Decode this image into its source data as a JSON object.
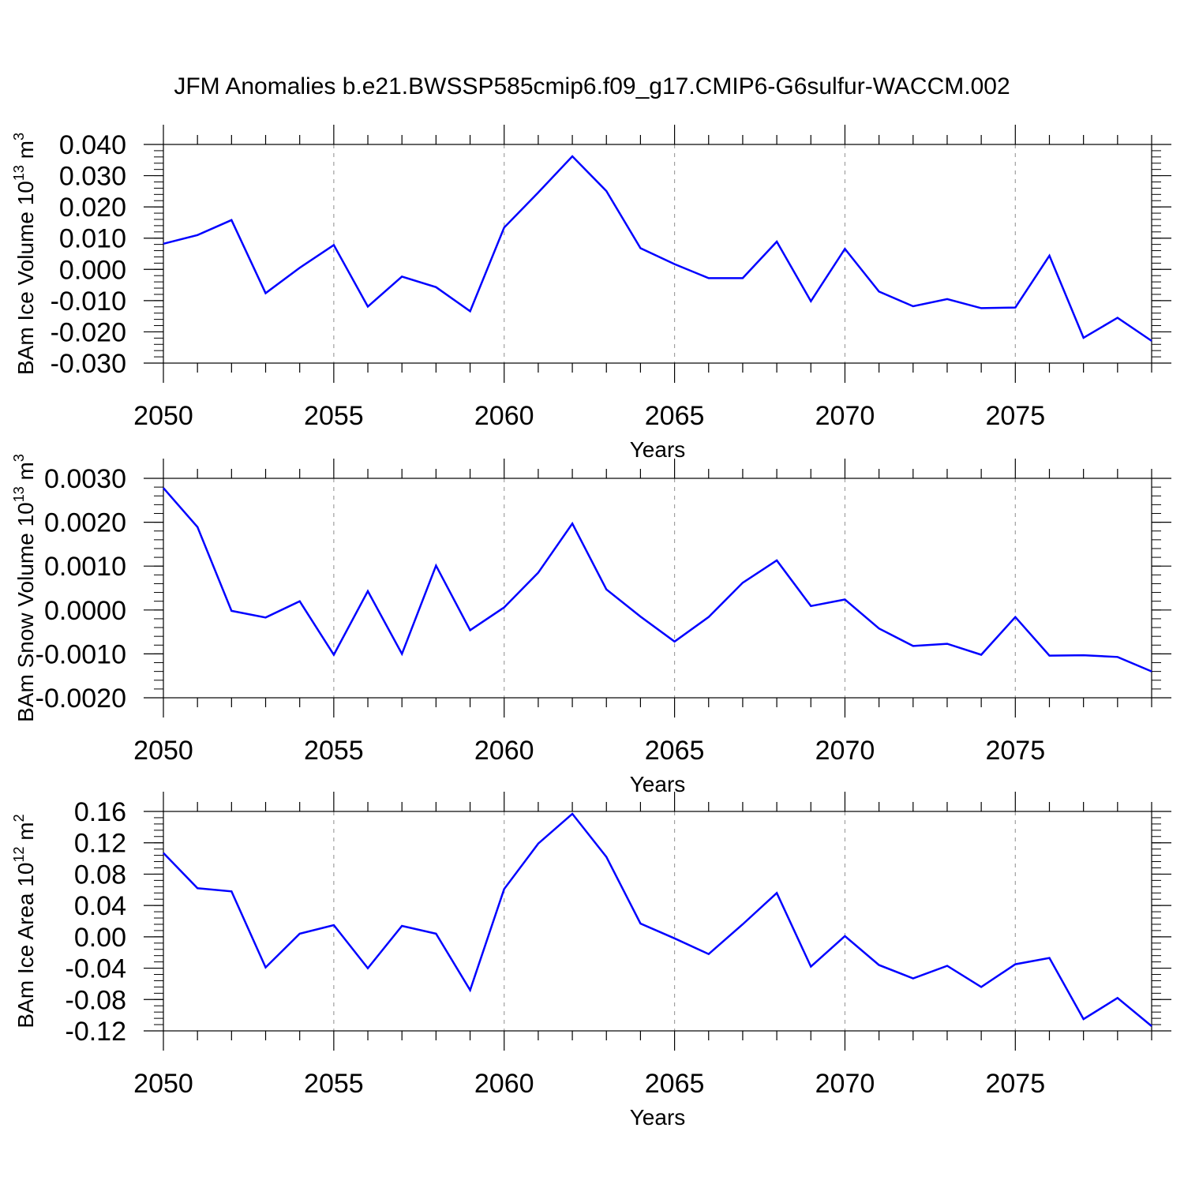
{
  "title": "JFM Anomalies b.e21.BWSSP585cmip6.f09_g17.CMIP6-G6sulfur-WACCM.002",
  "colors": {
    "line": "#0000ff",
    "axis": "#000000",
    "grid": "#a0a0a0"
  },
  "chart_data": [
    {
      "type": "line",
      "ylabel_main": "BAm Ice Volume 10",
      "ylabel_exp": "13",
      "ylabel_unit": " m",
      "ylabel_unit_exp": "3",
      "xlabel": "Years",
      "xlim": [
        2050,
        2079
      ],
      "ylim": [
        -0.03,
        0.04
      ],
      "x_ticks": [
        "2050",
        "2055",
        "2060",
        "2065",
        "2070",
        "2075"
      ],
      "y_ticks": [
        {
          "v": 0.04,
          "label": "0.040"
        },
        {
          "v": 0.03,
          "label": "0.030"
        },
        {
          "v": 0.02,
          "label": "0.020"
        },
        {
          "v": 0.01,
          "label": "0.010"
        },
        {
          "v": 0.0,
          "label": "0.000"
        },
        {
          "v": -0.01,
          "label": "-0.010"
        },
        {
          "v": -0.02,
          "label": "-0.020"
        },
        {
          "v": -0.03,
          "label": "-0.030"
        }
      ],
      "y_minor_step": 0.002,
      "gridlines_x": [
        2055,
        2060,
        2065,
        2070,
        2075
      ],
      "series": [
        {
          "x": [
            2050,
            2051,
            2052,
            2053,
            2054,
            2055,
            2056,
            2057,
            2058,
            2059,
            2060,
            2061,
            2062,
            2063,
            2064,
            2065,
            2066,
            2067,
            2068,
            2069,
            2070,
            2071,
            2072,
            2073,
            2074,
            2075,
            2076,
            2077,
            2078,
            2079
          ],
          "values": [
            0.0082,
            0.011,
            0.0158,
            -0.0076,
            0.0005,
            0.0078,
            -0.0119,
            -0.0023,
            -0.0057,
            -0.0134,
            0.0134,
            0.0246,
            0.0362,
            0.0251,
            0.0068,
            0.0017,
            -0.0028,
            -0.0028,
            0.0089,
            -0.0102,
            0.0066,
            -0.0071,
            -0.0118,
            -0.0095,
            -0.0124,
            -0.0122,
            0.0044,
            -0.0219,
            -0.0155,
            -0.0229
          ]
        }
      ]
    },
    {
      "type": "line",
      "ylabel_main": "BAm Snow Volume 10",
      "ylabel_exp": "13",
      "ylabel_unit": " m",
      "ylabel_unit_exp": "3",
      "xlabel": "Years",
      "xlim": [
        2050,
        2079
      ],
      "ylim": [
        -0.002,
        0.003
      ],
      "x_ticks": [
        "2050",
        "2055",
        "2060",
        "2065",
        "2070",
        "2075"
      ],
      "y_ticks": [
        {
          "v": 0.003,
          "label": "0.0030"
        },
        {
          "v": 0.002,
          "label": "0.0020"
        },
        {
          "v": 0.001,
          "label": "0.0010"
        },
        {
          "v": 0.0,
          "label": "0.0000"
        },
        {
          "v": -0.001,
          "label": "-0.0010"
        },
        {
          "v": -0.002,
          "label": "-0.0020"
        }
      ],
      "y_minor_step": 0.0002,
      "gridlines_x": [
        2055,
        2060,
        2065,
        2070,
        2075
      ],
      "series": [
        {
          "x": [
            2050,
            2051,
            2052,
            2053,
            2054,
            2055,
            2056,
            2057,
            2058,
            2059,
            2060,
            2061,
            2062,
            2063,
            2064,
            2065,
            2066,
            2067,
            2068,
            2069,
            2070,
            2071,
            2072,
            2073,
            2074,
            2075,
            2076,
            2077,
            2078,
            2079
          ],
          "values": [
            0.00278,
            0.00189,
            -2e-05,
            -0.00017,
            0.0002,
            -0.00102,
            0.00043,
            -0.001,
            0.00101,
            -0.00046,
            6e-05,
            0.00085,
            0.00197,
            0.00047,
            -0.00015,
            -0.00072,
            -0.00016,
            0.00062,
            0.00113,
            9e-05,
            0.00024,
            -0.00042,
            -0.00082,
            -0.00077,
            -0.00102,
            -0.00016,
            -0.00104,
            -0.00103,
            -0.00107,
            -0.0014
          ]
        }
      ]
    },
    {
      "type": "line",
      "ylabel_main": "BAm Ice Area 10",
      "ylabel_exp": "12",
      "ylabel_unit": " m",
      "ylabel_unit_exp": "2",
      "xlabel": "Years",
      "xlim": [
        2050,
        2079
      ],
      "ylim": [
        -0.12,
        0.16
      ],
      "x_ticks": [
        "2050",
        "2055",
        "2060",
        "2065",
        "2070",
        "2075"
      ],
      "y_ticks": [
        {
          "v": 0.16,
          "label": "0.16"
        },
        {
          "v": 0.12,
          "label": "0.12"
        },
        {
          "v": 0.08,
          "label": "0.08"
        },
        {
          "v": 0.04,
          "label": "0.04"
        },
        {
          "v": 0.0,
          "label": "0.00"
        },
        {
          "v": -0.04,
          "label": "-0.04"
        },
        {
          "v": -0.08,
          "label": "-0.08"
        },
        {
          "v": -0.12,
          "label": "-0.12"
        }
      ],
      "y_minor_step": 0.008,
      "gridlines_x": [
        2055,
        2060,
        2065,
        2070,
        2075
      ],
      "series": [
        {
          "x": [
            2050,
            2051,
            2052,
            2053,
            2054,
            2055,
            2056,
            2057,
            2058,
            2059,
            2060,
            2061,
            2062,
            2063,
            2064,
            2065,
            2066,
            2067,
            2068,
            2069,
            2070,
            2071,
            2072,
            2073,
            2074,
            2075,
            2076,
            2077,
            2078,
            2079
          ],
          "values": [
            0.107,
            0.062,
            0.058,
            -0.039,
            0.004,
            0.015,
            -0.04,
            0.014,
            0.004,
            -0.068,
            0.061,
            0.119,
            0.157,
            0.102,
            0.017,
            -0.002,
            -0.022,
            0.016,
            0.056,
            -0.038,
            0.001,
            -0.036,
            -0.053,
            -0.037,
            -0.064,
            -0.035,
            -0.027,
            -0.105,
            -0.078,
            -0.114
          ]
        }
      ]
    }
  ]
}
